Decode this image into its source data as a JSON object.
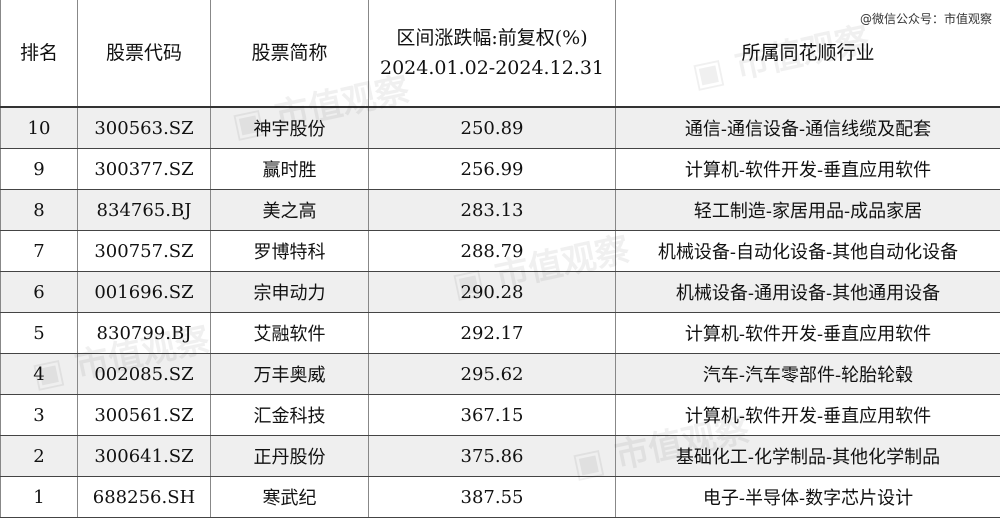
{
  "credit": "@微信公众号：市值观察",
  "watermark": "市值观察",
  "headers": {
    "rank": "排名",
    "code": "股票代码",
    "name": "股票简称",
    "change_line1": "区间涨跌幅:前复权(%)",
    "change_line2": "2024.01.02-2024.12.31",
    "industry": "所属同花顺行业"
  },
  "rows": [
    {
      "rank": "10",
      "code": "300563.SZ",
      "name": "神宇股份",
      "change": "250.89",
      "industry": "通信-通信设备-通信线缆及配套"
    },
    {
      "rank": "9",
      "code": "300377.SZ",
      "name": "赢时胜",
      "change": "256.99",
      "industry": "计算机-软件开发-垂直应用软件"
    },
    {
      "rank": "8",
      "code": "834765.BJ",
      "name": "美之高",
      "change": "283.13",
      "industry": "轻工制造-家居用品-成品家居"
    },
    {
      "rank": "7",
      "code": "300757.SZ",
      "name": "罗博特科",
      "change": "288.79",
      "industry": "机械设备-自动化设备-其他自动化设备"
    },
    {
      "rank": "6",
      "code": "001696.SZ",
      "name": "宗申动力",
      "change": "290.28",
      "industry": "机械设备-通用设备-其他通用设备"
    },
    {
      "rank": "5",
      "code": "830799.BJ",
      "name": "艾融软件",
      "change": "292.17",
      "industry": "计算机-软件开发-垂直应用软件"
    },
    {
      "rank": "4",
      "code": "002085.SZ",
      "name": "万丰奥威",
      "change": "295.62",
      "industry": "汽车-汽车零部件-轮胎轮毂"
    },
    {
      "rank": "3",
      "code": "300561.SZ",
      "name": "汇金科技",
      "change": "367.15",
      "industry": "计算机-软件开发-垂直应用软件"
    },
    {
      "rank": "2",
      "code": "300641.SZ",
      "name": "正丹股份",
      "change": "375.86",
      "industry": "基础化工-化学制品-其他化学制品"
    },
    {
      "rank": "1",
      "code": "688256.SH",
      "name": "寒武纪",
      "change": "387.55",
      "industry": "电子-半导体-数字芯片设计"
    }
  ]
}
